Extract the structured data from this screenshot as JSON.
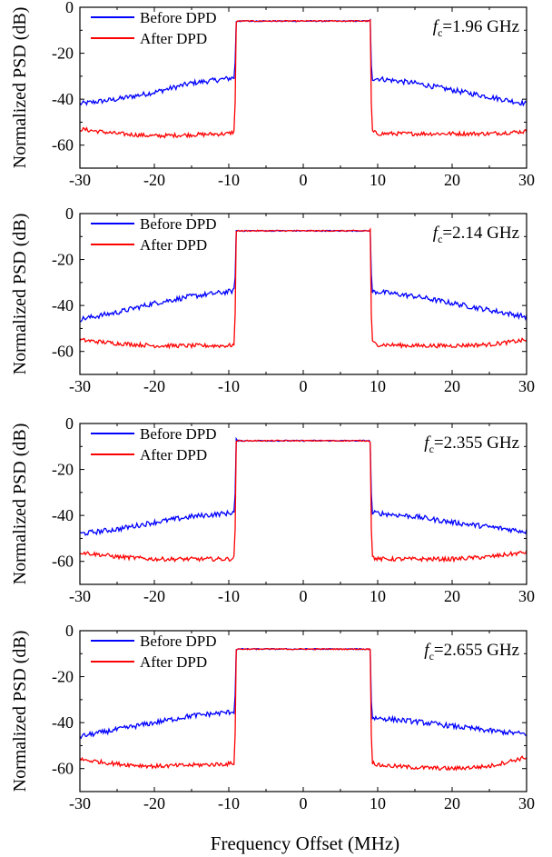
{
  "figure": {
    "xlabel": "Frequency Offset (MHz)"
  },
  "chart_data": [
    {
      "type": "line",
      "freq_label": "1.96 GHz",
      "ylabel": "Normalized PSD (dB)",
      "xlim": [
        -30,
        30
      ],
      "ylim": [
        -70,
        0
      ],
      "xticks": [
        -30,
        -20,
        -10,
        0,
        10,
        20,
        30
      ],
      "yticks": [
        0,
        -20,
        -40,
        -60
      ],
      "legend": "top-left",
      "grid": false,
      "series": [
        {
          "name": "Before DPD",
          "color": "#0000ff",
          "x": [
            -30,
            -25,
            -20,
            -15,
            -10,
            -9.2,
            -9,
            0,
            9,
            9.2,
            10,
            15,
            20,
            25,
            30
          ],
          "y": [
            -42,
            -40,
            -37,
            -33,
            -31,
            -30.5,
            -6,
            -6,
            -6,
            -31,
            -31,
            -33,
            -36,
            -39,
            -42
          ]
        },
        {
          "name": "After DPD",
          "color": "#ff0000",
          "x": [
            -30,
            -25,
            -20,
            -15,
            -10,
            -9.2,
            -9,
            0,
            9,
            9.2,
            10,
            15,
            20,
            25,
            30
          ],
          "y": [
            -53,
            -55,
            -56,
            -55.5,
            -55,
            -54,
            -6,
            -6,
            -6,
            -54,
            -55,
            -55,
            -55,
            -55,
            -54
          ]
        }
      ]
    },
    {
      "type": "line",
      "freq_label": "2.14 GHz",
      "ylabel": "Normalized PSD (dB)",
      "xlim": [
        -30,
        30
      ],
      "ylim": [
        -70,
        0
      ],
      "xticks": [
        -30,
        -20,
        -10,
        0,
        10,
        20,
        30
      ],
      "yticks": [
        0,
        -20,
        -40,
        -60
      ],
      "legend": "top-left",
      "grid": false,
      "series": [
        {
          "name": "Before DPD",
          "color": "#0000ff",
          "x": [
            -30,
            -25,
            -20,
            -15,
            -10,
            -9.2,
            -9,
            0,
            9,
            9.2,
            10,
            15,
            20,
            25,
            30
          ],
          "y": [
            -46,
            -43,
            -39,
            -36,
            -34,
            -33.5,
            -7.5,
            -7.5,
            -7.5,
            -34,
            -34,
            -36,
            -39,
            -42,
            -45
          ]
        },
        {
          "name": "After DPD",
          "color": "#ff0000",
          "x": [
            -30,
            -25,
            -20,
            -15,
            -10,
            -9.2,
            -9,
            0,
            9,
            9.2,
            10,
            15,
            20,
            25,
            30
          ],
          "y": [
            -55,
            -56.5,
            -57.5,
            -57.5,
            -57.5,
            -57,
            -7.5,
            -7.5,
            -7.5,
            -56,
            -57,
            -57.5,
            -57.5,
            -57,
            -55
          ]
        }
      ]
    },
    {
      "type": "line",
      "freq_label": "2.355 GHz",
      "ylabel": "Normalized PSD (dB)",
      "xlim": [
        -30,
        30
      ],
      "ylim": [
        -70,
        0
      ],
      "xticks": [
        -30,
        -20,
        -10,
        0,
        10,
        20,
        30
      ],
      "yticks": [
        0,
        -20,
        -40,
        -60
      ],
      "legend": "top-left",
      "grid": false,
      "series": [
        {
          "name": "Before DPD",
          "color": "#0000ff",
          "x": [
            -30,
            -25,
            -20,
            -15,
            -10,
            -9.2,
            -9,
            0,
            9,
            9.2,
            10,
            15,
            20,
            25,
            30
          ],
          "y": [
            -48,
            -46,
            -43,
            -40.5,
            -39,
            -38.5,
            -7.5,
            -7.5,
            -7.5,
            -39,
            -39,
            -40.5,
            -43,
            -45,
            -47
          ]
        },
        {
          "name": "After DPD",
          "color": "#ff0000",
          "x": [
            -30,
            -25,
            -20,
            -15,
            -10,
            -9.2,
            -9,
            0,
            9,
            9.2,
            10,
            15,
            20,
            25,
            30
          ],
          "y": [
            -56,
            -58,
            -59,
            -59,
            -59,
            -58.5,
            -7.5,
            -7.5,
            -7.5,
            -58,
            -59,
            -59,
            -59,
            -58,
            -56
          ]
        }
      ]
    },
    {
      "type": "line",
      "freq_label": "2.655 GHz",
      "ylabel": "Normalized PSD (dB)",
      "xlim": [
        -30,
        30
      ],
      "ylim": [
        -70,
        0
      ],
      "xticks": [
        -30,
        -20,
        -10,
        0,
        10,
        20,
        30
      ],
      "yticks": [
        0,
        -20,
        -40,
        -60
      ],
      "legend": "top-left",
      "grid": false,
      "series": [
        {
          "name": "Before DPD",
          "color": "#0000ff",
          "x": [
            -30,
            -25,
            -20,
            -15,
            -10,
            -9.2,
            -9,
            0,
            9,
            9.2,
            10,
            15,
            20,
            25,
            30
          ],
          "y": [
            -46,
            -43,
            -40,
            -37,
            -35.5,
            -35,
            -8,
            -8,
            -8,
            -38,
            -38,
            -39.5,
            -41.5,
            -43.5,
            -45
          ]
        },
        {
          "name": "After DPD",
          "color": "#ff0000",
          "x": [
            -30,
            -25,
            -20,
            -15,
            -10,
            -9.2,
            -9,
            0,
            9,
            9.2,
            10,
            15,
            20,
            25,
            30
          ],
          "y": [
            -56,
            -58,
            -59,
            -58.5,
            -58,
            -57.5,
            -8,
            -8,
            -8,
            -57,
            -58.5,
            -59.5,
            -60,
            -59,
            -55
          ]
        }
      ]
    }
  ]
}
